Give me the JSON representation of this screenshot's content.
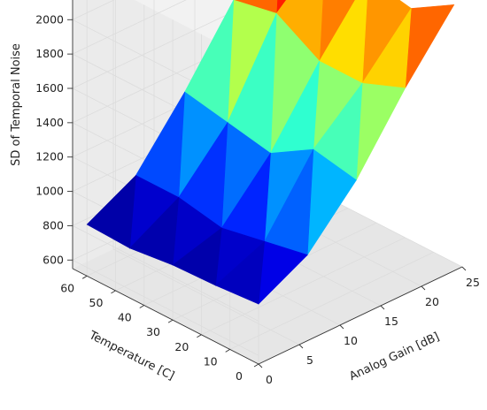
{
  "chart_data": {
    "type": "surface3d",
    "colormap": "jet",
    "xlabel": "Analog Gain [dB]",
    "ylabel": "Temperature [C]",
    "zlabel": "SD of Temporal Noise",
    "x": [
      0,
      6,
      12,
      18,
      24
    ],
    "y": [
      0,
      15,
      30,
      45,
      60
    ],
    "z": [
      [
        900,
        1050,
        1350,
        1750,
        2100
      ],
      [
        880,
        1000,
        1400,
        1650,
        1950
      ],
      [
        870,
        950,
        1250,
        1650,
        2000
      ],
      [
        840,
        1000,
        1300,
        1800,
        2050
      ],
      [
        850,
        1000,
        1350,
        1750,
        2250
      ]
    ],
    "xlim": [
      0,
      25
    ],
    "ylim": [
      0,
      65
    ],
    "zlim": [
      550,
      2300
    ],
    "x_ticks": [
      "0",
      "5",
      "10",
      "15",
      "20",
      "25"
    ],
    "y_ticks": [
      "0",
      "10",
      "20",
      "30",
      "40",
      "50",
      "60"
    ],
    "z_ticks": [
      "600",
      "800",
      "1000",
      "1200",
      "1400",
      "1600",
      "1800",
      "2000"
    ],
    "grid": true
  }
}
